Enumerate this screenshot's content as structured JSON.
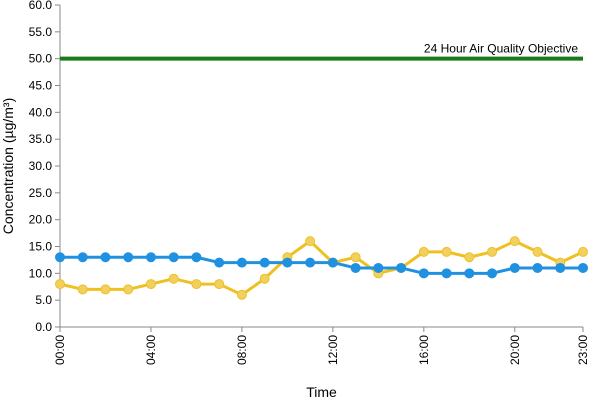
{
  "chart_data": {
    "type": "line",
    "title": "",
    "xlabel": "Time",
    "ylabel": "Concentration (µg/m³)",
    "ylim": [
      0,
      60
    ],
    "yticks": [
      "0.0",
      "5.0",
      "10.0",
      "15.0",
      "20.0",
      "25.0",
      "30.0",
      "35.0",
      "40.0",
      "45.0",
      "50.0",
      "55.0",
      "60.0"
    ],
    "x": [
      "00:00",
      "01:00",
      "02:00",
      "03:00",
      "04:00",
      "05:00",
      "06:00",
      "07:00",
      "08:00",
      "09:00",
      "10:00",
      "11:00",
      "12:00",
      "13:00",
      "14:00",
      "15:00",
      "16:00",
      "17:00",
      "18:00",
      "19:00",
      "20:00",
      "21:00",
      "22:00",
      "23:00"
    ],
    "xticks": [
      "00:00",
      "04:00",
      "08:00",
      "12:00",
      "16:00",
      "20:00",
      "23:00"
    ],
    "grid": false,
    "legend": "none",
    "series": [
      {
        "color": "#f0c020",
        "marker_color": "#f0d060",
        "values": [
          8,
          7,
          7,
          7,
          8,
          9,
          8,
          8,
          6,
          9,
          13,
          16,
          12,
          13,
          10,
          11,
          14,
          14,
          13,
          14,
          16,
          14,
          12,
          14
        ]
      },
      {
        "color": "#2090e0",
        "marker_color": "#2090e0",
        "values": [
          13,
          13,
          13,
          13,
          13,
          13,
          13,
          12,
          12,
          12,
          12,
          12,
          12,
          11,
          11,
          11,
          10,
          10,
          10,
          10,
          11,
          11,
          11,
          11
        ]
      }
    ],
    "reference_line": {
      "value": 50,
      "label": "24 Hour Air Quality Objective",
      "color": "#1a7a1a"
    }
  }
}
